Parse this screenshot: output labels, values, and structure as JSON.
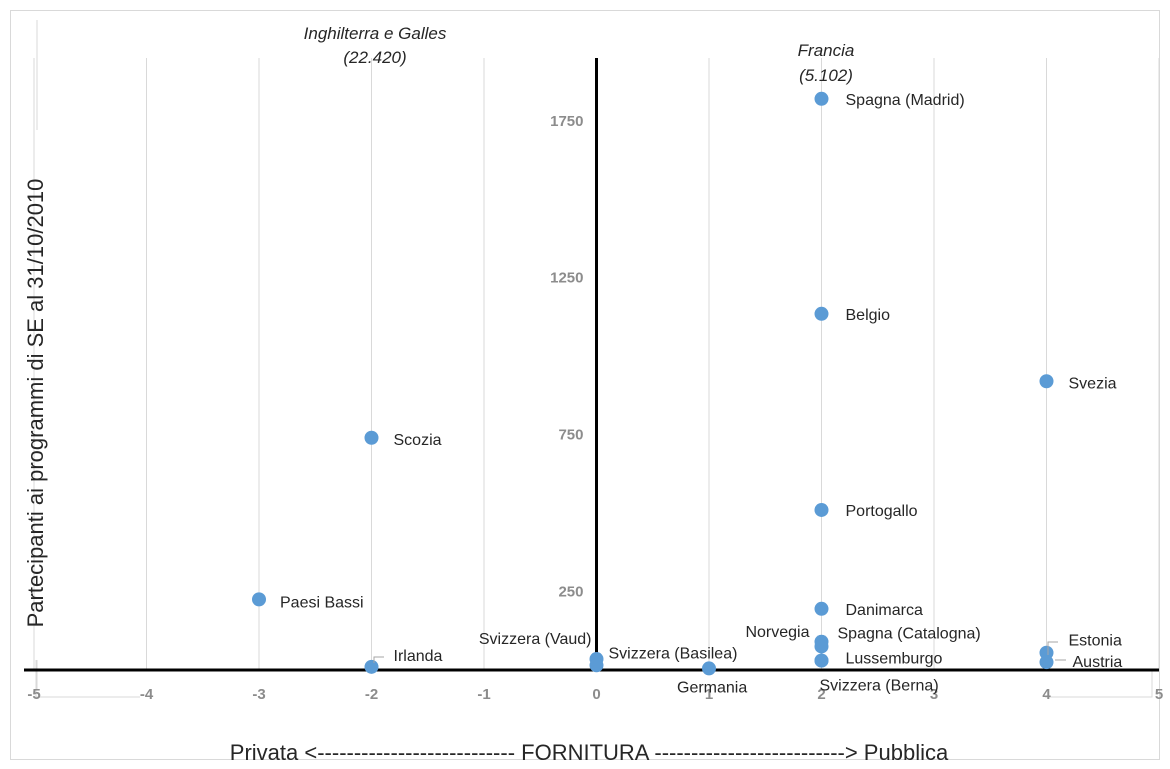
{
  "chart_data": {
    "type": "scatter",
    "xlabel": "Privata <--------------------------- FORNITURA --------------------------> Pubblica",
    "ylabel": "Partecipanti ai programmi di SE al 31/10/2010",
    "xlim": [
      -5,
      5
    ],
    "ylim": [
      0,
      1950
    ],
    "x_ticks": [
      "-5",
      "-4",
      "-3",
      "-2",
      "-1",
      "0",
      "1",
      "2",
      "3",
      "4",
      "5"
    ],
    "y_ticks": [
      "250",
      "750",
      "1250",
      "1750"
    ],
    "grid": "vertical",
    "marker_color": "#5b9bd5",
    "points": [
      {
        "label": "Spagna (Madrid)",
        "x": 2,
        "y": 1820
      },
      {
        "label": "Belgio",
        "x": 2,
        "y": 1135
      },
      {
        "label": "Svezia",
        "x": 4,
        "y": 920
      },
      {
        "label": "Scozia",
        "x": -2,
        "y": 740
      },
      {
        "label": "Portogallo",
        "x": 2,
        "y": 510
      },
      {
        "label": "Paesi Bassi",
        "x": -3,
        "y": 225
      },
      {
        "label": "Danimarca",
        "x": 2,
        "y": 195
      },
      {
        "label": "Norvegia",
        "x": 2,
        "y": 90
      },
      {
        "label": "Spagna (Catalogna)",
        "x": 2,
        "y": 75
      },
      {
        "label": "Lussemburgo",
        "x": 2,
        "y": 30
      },
      {
        "label": "Svizzera (Berna)",
        "x": 2,
        "y": 30
      },
      {
        "label": "Estonia",
        "x": 4,
        "y": 55
      },
      {
        "label": "Austria",
        "x": 4,
        "y": 25
      },
      {
        "label": "Irlanda",
        "x": -2,
        "y": 10
      },
      {
        "label": "Svizzera (Vaud)",
        "x": 0,
        "y": 35
      },
      {
        "label": "Svizzera (Basilea)",
        "x": 0,
        "y": 15
      },
      {
        "label": "Germania",
        "x": 1,
        "y": 5
      }
    ],
    "offchart_annotations": [
      {
        "line1": "Inghilterra e Galles",
        "line2": "(22.420)"
      },
      {
        "line1": "Francia",
        "line2": "(5.102)"
      }
    ]
  }
}
